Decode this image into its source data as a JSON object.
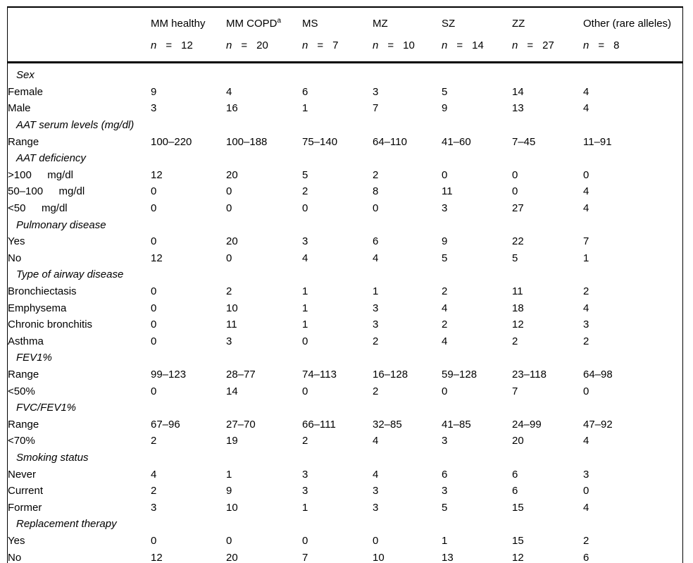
{
  "table": {
    "n_symbol": "n",
    "equals_symbol": "=",
    "columns": [
      {
        "label": "MM healthy",
        "sup": "",
        "n": "12"
      },
      {
        "label": "MM COPD",
        "sup": "a",
        "n": "20"
      },
      {
        "label": "MS",
        "sup": "",
        "n": "7"
      },
      {
        "label": "MZ",
        "sup": "",
        "n": "10"
      },
      {
        "label": "SZ",
        "sup": "",
        "n": "14"
      },
      {
        "label": "ZZ",
        "sup": "",
        "n": "27"
      },
      {
        "label": "Other (rare alleles)",
        "sup": "",
        "n": "8"
      }
    ],
    "sections": [
      {
        "title": "Sex",
        "rows": [
          {
            "label": "Female",
            "values": [
              "9",
              "4",
              "6",
              "3",
              "5",
              "14",
              "4"
            ]
          },
          {
            "label": "Male",
            "values": [
              "3",
              "16",
              "1",
              "7",
              "9",
              "13",
              "4"
            ]
          }
        ]
      },
      {
        "title": "AAT serum levels (mg/dl)",
        "rows": [
          {
            "label": "Range",
            "values": [
              "100–220",
              "100–188",
              "75–140",
              "64–110",
              "41–60",
              "7–45",
              "11–91"
            ]
          }
        ]
      },
      {
        "title": "AAT deficiency",
        "rows": [
          {
            "label": ">100   mg/dl",
            "values": [
              "12",
              "20",
              "5",
              "2",
              "0",
              "0",
              "0"
            ]
          },
          {
            "label": "50–100   mg/dl",
            "values": [
              "0",
              "0",
              "2",
              "8",
              "11",
              "0",
              "4"
            ]
          },
          {
            "label": "<50   mg/dl",
            "values": [
              "0",
              "0",
              "0",
              "0",
              "3",
              "27",
              "4"
            ]
          }
        ]
      },
      {
        "title": "Pulmonary disease",
        "rows": [
          {
            "label": "Yes",
            "values": [
              "0",
              "20",
              "3",
              "6",
              "9",
              "22",
              "7"
            ]
          },
          {
            "label": "No",
            "values": [
              "12",
              "0",
              "4",
              "4",
              "5",
              "5",
              "1"
            ]
          }
        ]
      },
      {
        "title": "Type of airway disease",
        "rows": [
          {
            "label": "Bronchiectasis",
            "values": [
              "0",
              "2",
              "1",
              "1",
              "2",
              "11",
              "2"
            ]
          },
          {
            "label": "Emphysema",
            "values": [
              "0",
              "10",
              "1",
              "3",
              "4",
              "18",
              "4"
            ]
          },
          {
            "label": "Chronic bronchitis",
            "values": [
              "0",
              "11",
              "1",
              "3",
              "2",
              "12",
              "3"
            ]
          },
          {
            "label": "Asthma",
            "values": [
              "0",
              "3",
              "0",
              "2",
              "4",
              "2",
              "2"
            ]
          }
        ]
      },
      {
        "title": "FEV1%",
        "rows": [
          {
            "label": "Range",
            "values": [
              "99–123",
              "28–77",
              "74–113",
              "16–128",
              "59–128",
              "23–118",
              "64–98"
            ]
          },
          {
            "label": "<50%",
            "values": [
              "0",
              "14",
              "0",
              "2",
              "0",
              "7",
              "0"
            ]
          }
        ]
      },
      {
        "title": "FVC/FEV1%",
        "rows": [
          {
            "label": "Range",
            "values": [
              "67–96",
              "27–70",
              "66–111",
              "32–85",
              "41–85",
              "24–99",
              "47–92"
            ]
          },
          {
            "label": "<70%",
            "values": [
              "2",
              "19",
              "2",
              "4",
              "3",
              "20",
              "4"
            ]
          }
        ]
      },
      {
        "title": "Smoking status",
        "rows": [
          {
            "label": "Never",
            "values": [
              "4",
              "1",
              "3",
              "4",
              "6",
              "6",
              "3"
            ]
          },
          {
            "label": "Current",
            "values": [
              "2",
              "9",
              "3",
              "3",
              "3",
              "6",
              "0"
            ]
          },
          {
            "label": "Former",
            "values": [
              "3",
              "10",
              "1",
              "3",
              "5",
              "15",
              "4"
            ]
          }
        ]
      },
      {
        "title": "Replacement therapy",
        "rows": [
          {
            "label": "Yes",
            "values": [
              "0",
              "0",
              "0",
              "0",
              "1",
              "15",
              "2"
            ]
          },
          {
            "label": "No",
            "values": [
              "12",
              "20",
              "7",
              "10",
              "13",
              "12",
              "6"
            ]
          }
        ]
      }
    ]
  }
}
